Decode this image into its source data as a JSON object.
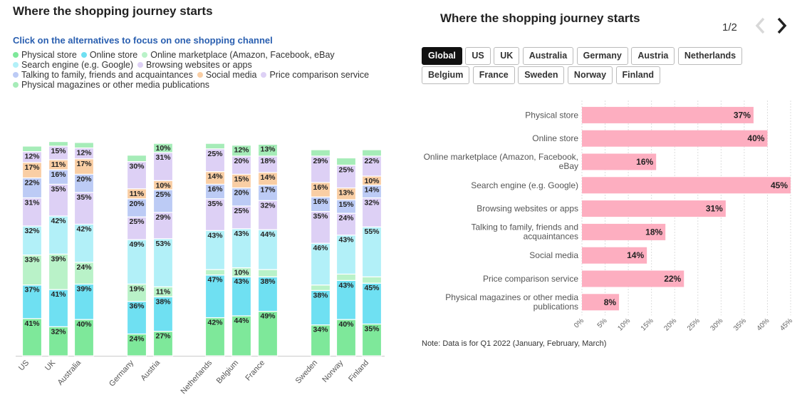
{
  "left": {
    "title": "Where the shopping journey starts",
    "subtitle": "Click on the alternatives to focus on one shopping channel",
    "legend": [
      {
        "label": "Physical store",
        "color": "#7ee89a"
      },
      {
        "label": "Online store",
        "color": "#6fe0f2"
      },
      {
        "label": "Online marketplace (Amazon, Facebook, eBay",
        "color": "#b9f2c8"
      },
      {
        "label": "Search engine (e.g. Google)",
        "color": "#b2f0f8"
      },
      {
        "label": "Browsing websites or apps",
        "color": "#ddd0f5"
      },
      {
        "label": "Talking to family, friends and acquaintances",
        "color": "#bccbf5"
      },
      {
        "label": "Social media",
        "color": "#f9cea4"
      },
      {
        "label": "Price comparison service",
        "color": "#ddd0f5"
      },
      {
        "label": "Physical magazines or other media publications",
        "color": "#a6ecb8"
      }
    ]
  },
  "right": {
    "title": "Where the shopping journey starts",
    "pager": "1/2",
    "tabs": [
      "Global",
      "US",
      "UK",
      "Australia",
      "Germany",
      "Austria",
      "Netherlands",
      "Belgium",
      "France",
      "Sweden",
      "Norway",
      "Finland"
    ],
    "active_tab": "Global",
    "note": "Note: Data is for Q1 2022 (January, February, March)"
  },
  "chart_data": [
    {
      "type": "bar",
      "stacked": true,
      "categories": [
        "US",
        "UK",
        "Australia",
        "Germany",
        "Austria",
        "Netherlands",
        "Belgium",
        "France",
        "Sweden",
        "Norway",
        "Finland"
      ],
      "series": [
        {
          "name": "Physical store",
          "color": "#7ee89a",
          "values": [
            41,
            32,
            40,
            24,
            27,
            42,
            44,
            49,
            34,
            40,
            35
          ]
        },
        {
          "name": "Online store",
          "color": "#6fe0f2",
          "values": [
            37,
            41,
            39,
            36,
            38,
            47,
            43,
            38,
            38,
            43,
            45
          ]
        },
        {
          "name": "Online marketplace (Amazon, Facebook, eBay",
          "color": "#b9f2c8",
          "values": [
            33,
            39,
            24,
            19,
            11,
            6,
            10,
            8,
            6,
            7,
            7
          ]
        },
        {
          "name": "Search engine (e.g. Google)",
          "color": "#b2f0f8",
          "values": [
            32,
            42,
            42,
            49,
            53,
            43,
            43,
            44,
            46,
            43,
            55
          ]
        },
        {
          "name": "Browsing websites or apps",
          "color": "#ddd0f5",
          "values": [
            31,
            35,
            35,
            25,
            29,
            35,
            25,
            32,
            35,
            24,
            32
          ]
        },
        {
          "name": "Talking to family, friends and acquaintances",
          "color": "#bccbf5",
          "values": [
            22,
            16,
            20,
            20,
            25,
            16,
            20,
            17,
            16,
            15,
            14
          ]
        },
        {
          "name": "Social media",
          "color": "#f9cea4",
          "values": [
            17,
            11,
            17,
            11,
            10,
            14,
            15,
            14,
            16,
            13,
            10
          ]
        },
        {
          "name": "Price comparison service",
          "color": "#ddd0f5",
          "values": [
            12,
            15,
            12,
            30,
            31,
            25,
            20,
            18,
            29,
            25,
            22
          ]
        },
        {
          "name": "Physical magazines or other media publications",
          "color": "#a6ecb8",
          "values": [
            6,
            5,
            6,
            7,
            10,
            6,
            12,
            13,
            7,
            8,
            7
          ]
        }
      ],
      "label_threshold": 10
    },
    {
      "type": "bar",
      "orientation": "horizontal",
      "categories": [
        "Physical store",
        "Online store",
        "Online marketplace (Amazon, Facebook, eBay",
        "Search engine (e.g. Google)",
        "Browsing websites or apps",
        "Talking to family, friends and acquaintances",
        "Social media",
        "Price comparison service",
        "Physical magazines or other media publications"
      ],
      "values": [
        37,
        40,
        16,
        45,
        31,
        18,
        14,
        22,
        8
      ],
      "value_labels": [
        "37%",
        "40%",
        "16%",
        "45%",
        "31%",
        "18%",
        "14%",
        "22%",
        "8%"
      ],
      "xlim": [
        0,
        45
      ],
      "ticks": [
        "0%",
        "5%",
        "10%",
        "15%",
        "20%",
        "25%",
        "30%",
        "35%",
        "40%",
        "45%"
      ],
      "bar_color": "#fdaec0",
      "grid": true
    }
  ]
}
